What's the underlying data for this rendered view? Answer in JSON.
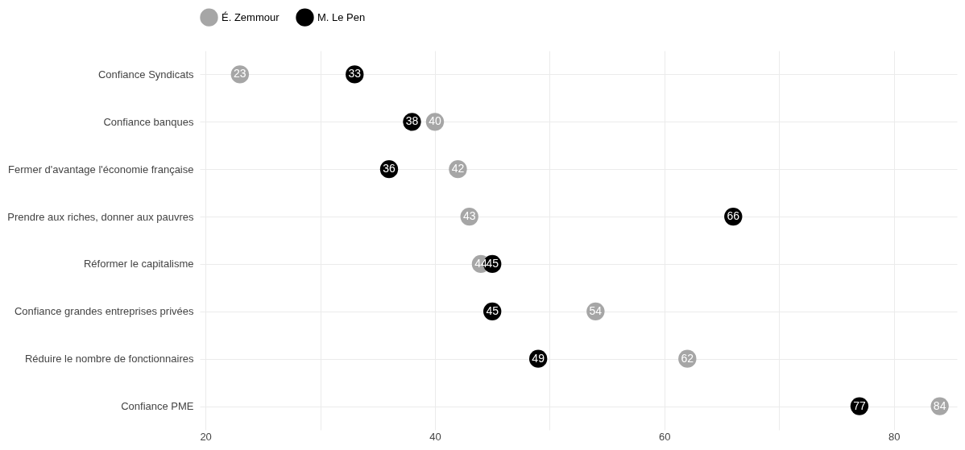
{
  "chart_data": {
    "type": "scatter",
    "orientation": "horizontal",
    "categories": [
      "Confiance Syndicats",
      "Confiance banques",
      "Fermer d'avantage l'économie française",
      "Prendre aux riches, donner aux pauvres",
      "Réformer le capitalisme",
      "Confiance grandes entreprises privées",
      "Réduire le nombre de fonctionnaires",
      "Confiance PME"
    ],
    "series": [
      {
        "name": "É. Zemmour",
        "color": "#a6a6a6",
        "values": [
          23,
          40,
          42,
          43,
          44,
          54,
          62,
          84
        ]
      },
      {
        "name": "M. Le Pen",
        "color": "#000000",
        "values": [
          33,
          38,
          36,
          66,
          45,
          45,
          49,
          77
        ]
      }
    ],
    "xlim": [
      19.5,
      85.5
    ],
    "xticks": [
      20,
      {
        "value": 30,
        "label": null
      },
      40,
      {
        "value": 50,
        "label": null
      },
      60,
      {
        "value": 70,
        "label": null
      },
      80
    ],
    "grid": true,
    "legend": "top",
    "marker": "circle",
    "data_labels": true
  }
}
